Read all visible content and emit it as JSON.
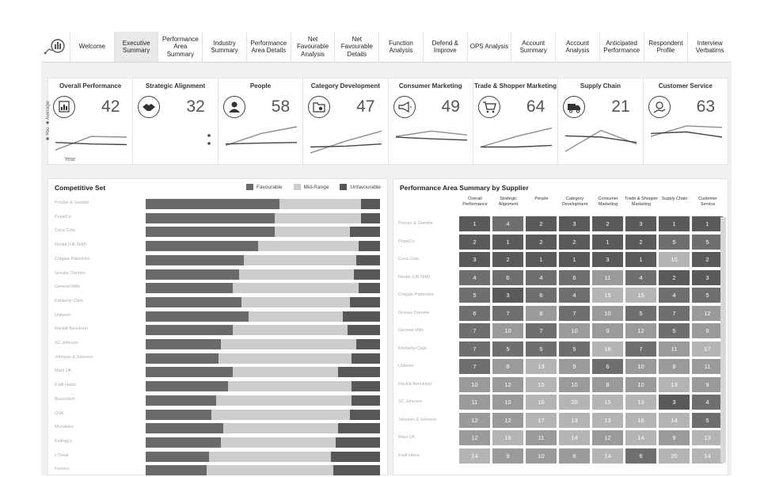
{
  "nav": {
    "tabs": [
      {
        "label": "Welcome",
        "active": false
      },
      {
        "label": "Executive Summary",
        "active": true
      },
      {
        "label": "Performance Area Summary",
        "active": false
      },
      {
        "label": "Industry Summary",
        "active": false
      },
      {
        "label": "Performance Area Details",
        "active": false
      },
      {
        "label": "Net Favourable Analysis",
        "active": false
      },
      {
        "label": "Net Favourable Details",
        "active": false
      },
      {
        "label": "Function Analysis",
        "active": false
      },
      {
        "label": "Defend & Improve",
        "active": false
      },
      {
        "label": "OPS Analysis",
        "active": false
      },
      {
        "label": "Account Summary",
        "active": false
      },
      {
        "label": "Account Analysis",
        "active": false
      },
      {
        "label": "Anticipated Performance",
        "active": false
      },
      {
        "label": "Respondent Profile",
        "active": false
      },
      {
        "label": "Interview Verbatims",
        "active": false
      }
    ]
  },
  "kpis": {
    "legend_you": "You",
    "legend_avg": "Average",
    "x_axis_label": "Year",
    "items": [
      {
        "title": "Overall Performance",
        "value": "42",
        "icon": "chart-report-icon",
        "you": [
          0.15,
          0.6,
          0.58
        ],
        "avg": [
          0.4,
          0.35,
          0.33
        ]
      },
      {
        "title": "Strategic Alignment",
        "value": "32",
        "icon": "handshake-icon",
        "you": [],
        "avg": []
      },
      {
        "title": "People",
        "value": "58",
        "icon": "person-icon",
        "you": [
          0.3,
          0.7,
          0.92
        ],
        "avg": [
          0.35,
          0.38,
          0.4
        ]
      },
      {
        "title": "Category Development",
        "value": "47",
        "icon": "folder-gear-icon",
        "you": [
          0.05,
          0.45,
          0.78
        ],
        "avg": [
          0.25,
          0.28,
          0.35
        ]
      },
      {
        "title": "Consumer Marketing",
        "value": "49",
        "icon": "megaphone-icon",
        "you": [
          0.6,
          0.78,
          0.65
        ],
        "avg": [
          0.58,
          0.52,
          0.48
        ]
      },
      {
        "title": "Trade & Shopper Marketing",
        "value": "64",
        "icon": "shopping-cart-icon",
        "you": [
          0.25,
          0.6,
          0.88
        ],
        "avg": [
          0.25,
          0.25,
          0.3
        ]
      },
      {
        "title": "Supply Chain",
        "value": "21",
        "icon": "truck-icon",
        "you": [
          0.1,
          0.8,
          0.35
        ],
        "avg": [
          0.62,
          0.58,
          0.4
        ]
      },
      {
        "title": "Customer Service",
        "value": "63",
        "icon": "hand-money-icon",
        "you": [
          0.6,
          0.95,
          0.9
        ],
        "avg": [
          0.7,
          0.75,
          0.58
        ]
      }
    ]
  },
  "competitive": {
    "title": "Competitive Set",
    "legend": {
      "favourable": "Favourable",
      "midrange": "Mid-Range",
      "unfavourable": "Unfavourable"
    },
    "colors": {
      "favourable": "#6a6a6a",
      "midrange": "#cdcdcd",
      "unfavourable": "#575757"
    },
    "rows": [
      {
        "name": "Procter & Gamble",
        "f": 57,
        "m": 35,
        "u": 8
      },
      {
        "name": "PepsiCo",
        "f": 55,
        "m": 37,
        "u": 8
      },
      {
        "name": "Coca Cola",
        "f": 55,
        "m": 32,
        "u": 13
      },
      {
        "name": "Nestlé (UK NIM)",
        "f": 48,
        "m": 43,
        "u": 9
      },
      {
        "name": "Colgate-Palmolive",
        "f": 42,
        "m": 48,
        "u": 10
      },
      {
        "name": "Groupe Danone",
        "f": 40,
        "m": 49,
        "u": 11
      },
      {
        "name": "General Mills",
        "f": 37,
        "m": 54,
        "u": 9
      },
      {
        "name": "Kimberly-Clark",
        "f": 41,
        "m": 46,
        "u": 13
      },
      {
        "name": "Unilever",
        "f": 44,
        "m": 40,
        "u": 16
      },
      {
        "name": "Reckitt Benckiser",
        "f": 37,
        "m": 49,
        "u": 14
      },
      {
        "name": "SC Johnson",
        "f": 32,
        "m": 58,
        "u": 10
      },
      {
        "name": "Johnson & Johnson",
        "f": 31,
        "m": 57,
        "u": 12
      },
      {
        "name": "Mars UK",
        "f": 37,
        "m": 45,
        "u": 18
      },
      {
        "name": "Kraft Heinz",
        "f": 35,
        "m": 53,
        "u": 12
      },
      {
        "name": "Beiersdorf",
        "f": 30,
        "m": 58,
        "u": 12
      },
      {
        "name": "GSK",
        "f": 28,
        "m": 59,
        "u": 13
      },
      {
        "name": "Mondelez",
        "f": 33,
        "m": 49,
        "u": 18
      },
      {
        "name": "Kellogg's",
        "f": 32,
        "m": 49,
        "u": 19
      },
      {
        "name": "L'Oréal",
        "f": 27,
        "m": 52,
        "u": 21
      },
      {
        "name": "Ferrero",
        "f": 26,
        "m": 54,
        "u": 20
      }
    ]
  },
  "summary": {
    "title": "Performance Area Summary by Supplier",
    "columns": [
      "Overall Performance",
      "Strategic Alignment",
      "People",
      "Category Development",
      "Consumer Marketing",
      "Trade & Shopper Marketing",
      "Supply Chain",
      "Customer Service"
    ],
    "rows": [
      {
        "name": "Procter & Gamble",
        "v": [
          1,
          4,
          2,
          3,
          2,
          3,
          1,
          1
        ]
      },
      {
        "name": "PepsiCo",
        "v": [
          2,
          1,
          2,
          2,
          1,
          2,
          5,
          5
        ]
      },
      {
        "name": "Coca Cola",
        "v": [
          3,
          2,
          1,
          1,
          3,
          1,
          15,
          2
        ]
      },
      {
        "name": "Nestlé (UK NIM)",
        "v": [
          4,
          6,
          4,
          6,
          11,
          4,
          2,
          3
        ]
      },
      {
        "name": "Colgate-Palmolive",
        "v": [
          5,
          3,
          6,
          4,
          15,
          15,
          4,
          5
        ]
      },
      {
        "name": "Groupe Danone",
        "v": [
          6,
          7,
          8,
          7,
          10,
          5,
          7,
          12
        ]
      },
      {
        "name": "General Mills",
        "v": [
          7,
          10,
          7,
          10,
          9,
          12,
          5,
          9
        ]
      },
      {
        "name": "Kimberly-Clark",
        "v": [
          7,
          5,
          5,
          5,
          18,
          7,
          11,
          17
        ]
      },
      {
        "name": "Unilever",
        "v": [
          7,
          8,
          13,
          9,
          6,
          10,
          8,
          11
        ]
      },
      {
        "name": "Reckitt Benckiser",
        "v": [
          10,
          12,
          15,
          10,
          8,
          10,
          13,
          9
        ]
      },
      {
        "name": "SC Johnson",
        "v": [
          11,
          10,
          16,
          20,
          15,
          13,
          3,
          4
        ]
      },
      {
        "name": "Johnson & Johnson",
        "v": [
          12,
          12,
          17,
          13,
          13,
          16,
          14,
          5
        ]
      },
      {
        "name": "Mars UK",
        "v": [
          12,
          19,
          11,
          14,
          12,
          14,
          9,
          13
        ]
      },
      {
        "name": "Kraft Heinz",
        "v": [
          14,
          9,
          10,
          8,
          14,
          6,
          20,
          14
        ]
      }
    ]
  }
}
